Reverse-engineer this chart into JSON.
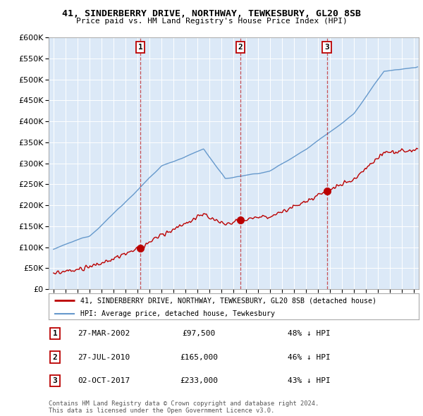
{
  "title": "41, SINDERBERRY DRIVE, NORTHWAY, TEWKESBURY, GL20 8SB",
  "subtitle": "Price paid vs. HM Land Registry's House Price Index (HPI)",
  "ylim": [
    0,
    600000
  ],
  "yticks": [
    0,
    50000,
    100000,
    150000,
    200000,
    250000,
    300000,
    350000,
    400000,
    450000,
    500000,
    550000,
    600000
  ],
  "xlim_start": 1994.6,
  "xlim_end": 2025.4,
  "bg_color": "#dce9f7",
  "transactions": [
    {
      "num": 1,
      "date": "27-MAR-2002",
      "price": 97500,
      "year": 2002.23,
      "label": "£97,500",
      "pct": "48% ↓ HPI"
    },
    {
      "num": 2,
      "date": "27-JUL-2010",
      "price": 165000,
      "year": 2010.57,
      "label": "£165,000",
      "pct": "46% ↓ HPI"
    },
    {
      "num": 3,
      "date": "02-OCT-2017",
      "price": 233000,
      "year": 2017.75,
      "label": "£233,000",
      "pct": "43% ↓ HPI"
    }
  ],
  "legend_line1": "41, SINDERBERRY DRIVE, NORTHWAY, TEWKESBURY, GL20 8SB (detached house)",
  "legend_line2": "HPI: Average price, detached house, Tewkesbury",
  "footer": "Contains HM Land Registry data © Crown copyright and database right 2024.\nThis data is licensed under the Open Government Licence v3.0.",
  "red_color": "#bb0000",
  "blue_color": "#6699cc",
  "grid_color": "#ffffff"
}
